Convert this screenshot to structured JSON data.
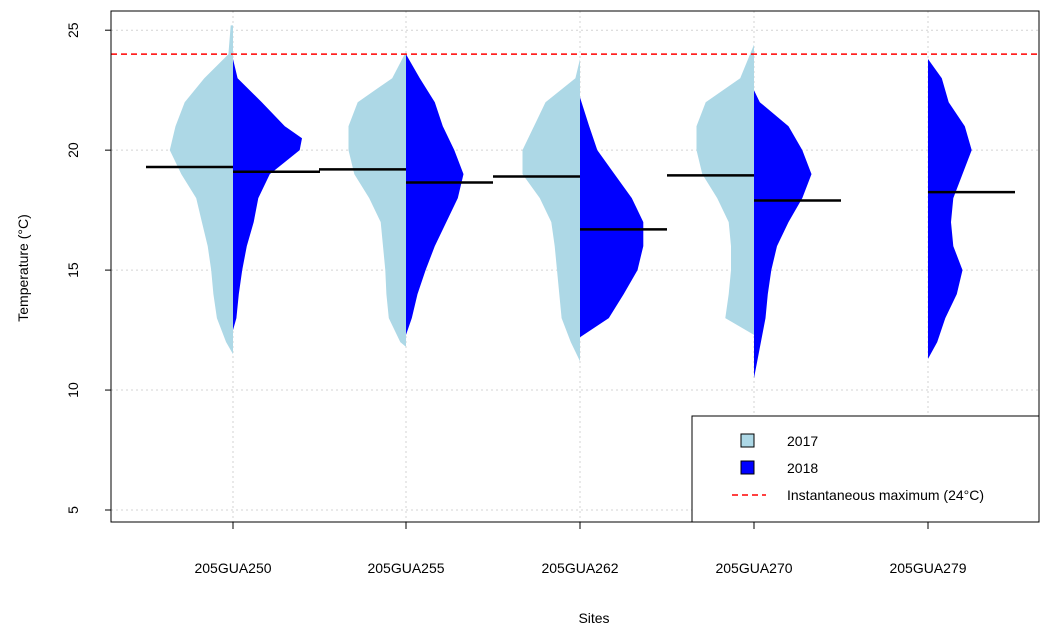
{
  "chart_data": {
    "type": "violin",
    "xlabel": "Sites",
    "ylabel": "Temperature (°C)",
    "ylim": [
      4.5,
      25.8
    ],
    "yticks": [
      5,
      10,
      15,
      20,
      25
    ],
    "categories": [
      "205GUA250",
      "205GUA255",
      "205GUA262",
      "205GUA270",
      "205GUA279"
    ],
    "grid": true,
    "series": [
      {
        "name": "2017",
        "color": "#add8e6",
        "side": "left",
        "medians": [
          19.3,
          19.2,
          18.9,
          18.95,
          null
        ],
        "ranges": [
          [
            11.5,
            25.2
          ],
          [
            11.8,
            24.1
          ],
          [
            11.2,
            23.8
          ],
          [
            12.3,
            24.4
          ],
          null
        ]
      },
      {
        "name": "2018",
        "color": "#0000ff",
        "side": "right",
        "medians": [
          19.1,
          18.65,
          16.7,
          17.9,
          18.25
        ],
        "ranges": [
          [
            12.5,
            23.8
          ],
          [
            12.3,
            24.0
          ],
          [
            12.2,
            22.2
          ],
          [
            10.5,
            22.5
          ],
          [
            11.3,
            23.8
          ]
        ]
      }
    ],
    "reference_line": {
      "value": 24,
      "label": "Instantaneous maximum (24°C)",
      "color": "#ff0000",
      "style": "dashed"
    },
    "legend": {
      "position": "bottom-right",
      "entries": [
        "2017",
        "2018",
        "Instantaneous maximum (24°C)"
      ]
    }
  }
}
